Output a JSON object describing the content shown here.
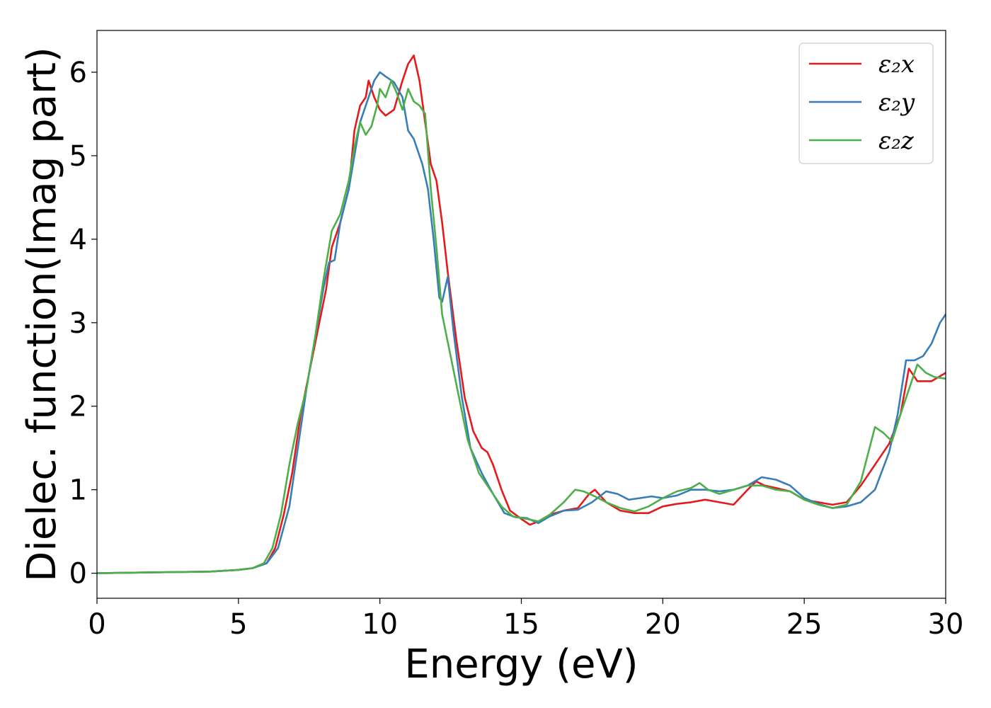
{
  "chart_data": {
    "type": "line",
    "title": "",
    "xlabel": "Energy (eV)",
    "ylabel": "Dielec. function(Imag part)",
    "xlim": [
      0,
      30
    ],
    "ylim": [
      -0.3,
      6.5
    ],
    "xticks": [
      0,
      5,
      10,
      15,
      20,
      25,
      30
    ],
    "yticks": [
      0,
      1,
      2,
      3,
      4,
      5,
      6
    ],
    "grid": false,
    "legend_position": "top-right",
    "series": [
      {
        "name": "ε₂x",
        "color": "#e41a1c",
        "points": [
          [
            0,
            0
          ],
          [
            2,
            0.01
          ],
          [
            4,
            0.02
          ],
          [
            5,
            0.04
          ],
          [
            5.5,
            0.06
          ],
          [
            6,
            0.12
          ],
          [
            6.3,
            0.3
          ],
          [
            6.6,
            0.7
          ],
          [
            6.9,
            1.2
          ],
          [
            7.2,
            1.9
          ],
          [
            7.5,
            2.4
          ],
          [
            7.8,
            2.9
          ],
          [
            8.1,
            3.4
          ],
          [
            8.3,
            3.9
          ],
          [
            8.6,
            4.2
          ],
          [
            8.9,
            4.6
          ],
          [
            9.1,
            5.3
          ],
          [
            9.3,
            5.6
          ],
          [
            9.5,
            5.7
          ],
          [
            9.6,
            5.9
          ],
          [
            9.8,
            5.7
          ],
          [
            10.0,
            5.55
          ],
          [
            10.2,
            5.48
          ],
          [
            10.5,
            5.55
          ],
          [
            10.8,
            5.9
          ],
          [
            11.0,
            6.1
          ],
          [
            11.2,
            6.2
          ],
          [
            11.4,
            5.9
          ],
          [
            11.6,
            5.4
          ],
          [
            11.8,
            4.9
          ],
          [
            12.0,
            4.7
          ],
          [
            12.2,
            4.2
          ],
          [
            12.4,
            3.6
          ],
          [
            12.7,
            2.8
          ],
          [
            13.0,
            2.1
          ],
          [
            13.3,
            1.7
          ],
          [
            13.6,
            1.5
          ],
          [
            13.8,
            1.45
          ],
          [
            14.0,
            1.3
          ],
          [
            14.3,
            1.0
          ],
          [
            14.6,
            0.75
          ],
          [
            15.0,
            0.65
          ],
          [
            15.3,
            0.58
          ],
          [
            15.6,
            0.62
          ],
          [
            16.0,
            0.7
          ],
          [
            16.5,
            0.75
          ],
          [
            17.0,
            0.78
          ],
          [
            17.4,
            0.95
          ],
          [
            17.6,
            1.0
          ],
          [
            18.0,
            0.85
          ],
          [
            18.5,
            0.75
          ],
          [
            19.0,
            0.72
          ],
          [
            19.5,
            0.72
          ],
          [
            20.0,
            0.8
          ],
          [
            20.5,
            0.83
          ],
          [
            21.0,
            0.85
          ],
          [
            21.5,
            0.88
          ],
          [
            22.0,
            0.85
          ],
          [
            22.5,
            0.82
          ],
          [
            23.0,
            1.0
          ],
          [
            23.3,
            1.1
          ],
          [
            23.6,
            1.05
          ],
          [
            24.0,
            1.02
          ],
          [
            24.5,
            0.98
          ],
          [
            25.0,
            0.88
          ],
          [
            25.5,
            0.85
          ],
          [
            26.0,
            0.82
          ],
          [
            26.5,
            0.85
          ],
          [
            27.0,
            1.05
          ],
          [
            27.5,
            1.3
          ],
          [
            28.0,
            1.55
          ],
          [
            28.4,
            1.9
          ],
          [
            28.7,
            2.45
          ],
          [
            29.0,
            2.3
          ],
          [
            29.5,
            2.3
          ],
          [
            30,
            2.4
          ]
        ]
      },
      {
        "name": "ε₂y",
        "color": "#377eb8",
        "points": [
          [
            0,
            0
          ],
          [
            2,
            0.01
          ],
          [
            4,
            0.02
          ],
          [
            5,
            0.04
          ],
          [
            5.5,
            0.06
          ],
          [
            6,
            0.12
          ],
          [
            6.4,
            0.3
          ],
          [
            6.8,
            0.8
          ],
          [
            7.1,
            1.5
          ],
          [
            7.4,
            2.2
          ],
          [
            7.7,
            2.8
          ],
          [
            8.0,
            3.4
          ],
          [
            8.2,
            3.72
          ],
          [
            8.4,
            3.75
          ],
          [
            8.6,
            4.2
          ],
          [
            8.9,
            4.6
          ],
          [
            9.1,
            5.0
          ],
          [
            9.3,
            5.4
          ],
          [
            9.6,
            5.7
          ],
          [
            9.8,
            5.9
          ],
          [
            10.0,
            6.0
          ],
          [
            10.2,
            5.95
          ],
          [
            10.5,
            5.88
          ],
          [
            10.8,
            5.7
          ],
          [
            11.0,
            5.3
          ],
          [
            11.2,
            5.2
          ],
          [
            11.5,
            4.9
          ],
          [
            11.7,
            4.6
          ],
          [
            11.9,
            4.0
          ],
          [
            12.1,
            3.3
          ],
          [
            12.2,
            3.25
          ],
          [
            12.4,
            3.55
          ],
          [
            12.6,
            2.9
          ],
          [
            12.9,
            2.1
          ],
          [
            13.2,
            1.5
          ],
          [
            13.6,
            1.2
          ],
          [
            14.0,
            0.95
          ],
          [
            14.4,
            0.72
          ],
          [
            14.8,
            0.67
          ],
          [
            15.2,
            0.66
          ],
          [
            15.6,
            0.6
          ],
          [
            16.0,
            0.68
          ],
          [
            16.5,
            0.75
          ],
          [
            17.0,
            0.76
          ],
          [
            17.5,
            0.85
          ],
          [
            18.0,
            0.98
          ],
          [
            18.4,
            0.95
          ],
          [
            18.8,
            0.88
          ],
          [
            19.2,
            0.9
          ],
          [
            19.6,
            0.92
          ],
          [
            20.0,
            0.9
          ],
          [
            20.5,
            0.93
          ],
          [
            21.0,
            1.0
          ],
          [
            21.5,
            1.0
          ],
          [
            22.0,
            0.98
          ],
          [
            22.5,
            1.0
          ],
          [
            23.0,
            1.05
          ],
          [
            23.5,
            1.15
          ],
          [
            24.0,
            1.12
          ],
          [
            24.5,
            1.05
          ],
          [
            25.0,
            0.9
          ],
          [
            25.5,
            0.83
          ],
          [
            26.0,
            0.78
          ],
          [
            26.5,
            0.8
          ],
          [
            27.0,
            0.85
          ],
          [
            27.5,
            1.0
          ],
          [
            28.0,
            1.45
          ],
          [
            28.3,
            1.9
          ],
          [
            28.6,
            2.55
          ],
          [
            28.9,
            2.55
          ],
          [
            29.2,
            2.6
          ],
          [
            29.5,
            2.75
          ],
          [
            29.8,
            3.0
          ],
          [
            30,
            3.1
          ]
        ]
      },
      {
        "name": "ε₂z",
        "color": "#4daf4a",
        "points": [
          [
            0,
            0
          ],
          [
            2,
            0.01
          ],
          [
            4,
            0.02
          ],
          [
            5,
            0.04
          ],
          [
            5.5,
            0.06
          ],
          [
            5.9,
            0.12
          ],
          [
            6.2,
            0.3
          ],
          [
            6.5,
            0.7
          ],
          [
            6.8,
            1.3
          ],
          [
            7.1,
            1.8
          ],
          [
            7.4,
            2.2
          ],
          [
            7.7,
            2.8
          ],
          [
            8.0,
            3.5
          ],
          [
            8.3,
            4.1
          ],
          [
            8.6,
            4.3
          ],
          [
            8.9,
            4.7
          ],
          [
            9.1,
            5.1
          ],
          [
            9.3,
            5.4
          ],
          [
            9.5,
            5.25
          ],
          [
            9.7,
            5.35
          ],
          [
            9.9,
            5.6
          ],
          [
            10.0,
            5.8
          ],
          [
            10.2,
            5.7
          ],
          [
            10.4,
            5.9
          ],
          [
            10.6,
            5.75
          ],
          [
            10.8,
            5.55
          ],
          [
            11.0,
            5.8
          ],
          [
            11.2,
            5.65
          ],
          [
            11.4,
            5.6
          ],
          [
            11.6,
            5.5
          ],
          [
            11.8,
            4.6
          ],
          [
            12.0,
            3.9
          ],
          [
            12.2,
            3.1
          ],
          [
            12.5,
            2.6
          ],
          [
            12.8,
            2.1
          ],
          [
            13.1,
            1.6
          ],
          [
            13.5,
            1.2
          ],
          [
            13.9,
            1.0
          ],
          [
            14.3,
            0.8
          ],
          [
            14.7,
            0.68
          ],
          [
            15.2,
            0.65
          ],
          [
            15.6,
            0.62
          ],
          [
            16.0,
            0.7
          ],
          [
            16.5,
            0.85
          ],
          [
            16.9,
            1.0
          ],
          [
            17.2,
            0.98
          ],
          [
            17.6,
            0.92
          ],
          [
            18.0,
            0.85
          ],
          [
            18.5,
            0.78
          ],
          [
            19.0,
            0.74
          ],
          [
            19.5,
            0.8
          ],
          [
            20.0,
            0.9
          ],
          [
            20.5,
            0.98
          ],
          [
            21.0,
            1.02
          ],
          [
            21.3,
            1.08
          ],
          [
            21.6,
            1.0
          ],
          [
            22.0,
            0.95
          ],
          [
            22.5,
            1.0
          ],
          [
            23.0,
            1.05
          ],
          [
            23.5,
            1.05
          ],
          [
            24.0,
            1.0
          ],
          [
            24.5,
            0.98
          ],
          [
            25.0,
            0.88
          ],
          [
            25.5,
            0.82
          ],
          [
            26.0,
            0.78
          ],
          [
            26.5,
            0.82
          ],
          [
            27.0,
            1.1
          ],
          [
            27.5,
            1.75
          ],
          [
            27.8,
            1.68
          ],
          [
            28.1,
            1.58
          ],
          [
            28.4,
            1.9
          ],
          [
            28.7,
            2.2
          ],
          [
            29.0,
            2.5
          ],
          [
            29.3,
            2.4
          ],
          [
            29.6,
            2.35
          ],
          [
            30,
            2.33
          ]
        ]
      }
    ]
  }
}
